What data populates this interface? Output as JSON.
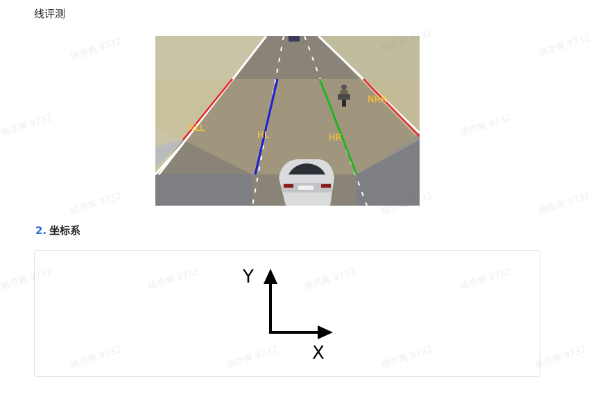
{
  "intro": {
    "text": "线评测"
  },
  "scene": {
    "lane_labels": {
      "nll": "NLL",
      "hl": "HL",
      "hr": "HR",
      "nrr": "NRR"
    },
    "colors": {
      "nll": "#e8232a",
      "hl": "#1a1fd6",
      "hr": "#1fb51f",
      "nrr": "#e8232a",
      "label": "#ffc52e"
    }
  },
  "section": {
    "number": "2.",
    "title": "坐标系"
  },
  "axes": {
    "y_label": "Y",
    "x_label": "X"
  },
  "watermark": {
    "text": "姚京爽 9732"
  }
}
